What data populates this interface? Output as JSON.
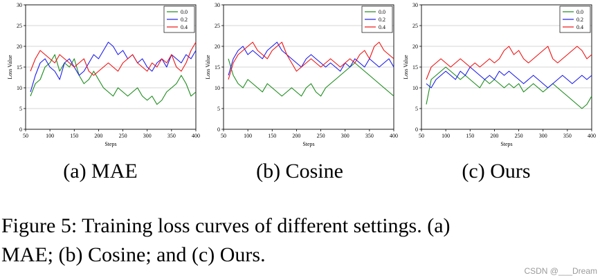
{
  "figure": {
    "labels": [
      "(a) MAE",
      "(b) Cosine",
      "(c) Ours"
    ],
    "caption_line1": "Figure 5: Training loss curves of different settings. (a)",
    "caption_line2": "MAE; (b) Cosine; and (c) Ours.",
    "watermark": "CSDN @___Dream"
  },
  "colors": {
    "s0": "#1a8a1a",
    "s1": "#1a1aee",
    "s2": "#ee1111"
  },
  "chart_data": [
    {
      "type": "line",
      "title": "(a) MAE",
      "xlabel": "Steps",
      "ylabel": "Loss Value",
      "xlim": [
        50,
        400
      ],
      "ylim": [
        0,
        30
      ],
      "xticks": [
        50,
        100,
        150,
        200,
        250,
        300,
        350,
        400
      ],
      "yticks": [
        0,
        5,
        10,
        15,
        20,
        25,
        30
      ],
      "grid": true,
      "legend": "top-right",
      "series": [
        {
          "name": "0.0",
          "x_start": 60,
          "x_step": 10,
          "values": [
            8,
            11,
            12,
            15,
            16,
            18,
            14,
            16,
            15,
            17,
            13,
            11,
            12,
            14,
            12,
            10,
            9,
            8,
            10,
            9,
            8,
            9,
            10,
            8,
            7,
            8,
            6,
            7,
            9,
            10,
            11,
            13,
            11,
            8,
            9
          ]
        },
        {
          "name": "0.2",
          "x_start": 60,
          "x_step": 10,
          "values": [
            9,
            13,
            16,
            17,
            15,
            14,
            12,
            16,
            17,
            15,
            13,
            14,
            16,
            18,
            17,
            19,
            21,
            20,
            18,
            19,
            17,
            18,
            16,
            17,
            15,
            14,
            16,
            17,
            15,
            18,
            17,
            16,
            18,
            17,
            19
          ]
        },
        {
          "name": "0.4",
          "x_start": 60,
          "x_step": 10,
          "values": [
            14,
            17,
            19,
            18,
            17,
            16,
            18,
            17,
            16,
            15,
            16,
            17,
            14,
            13,
            14,
            15,
            16,
            15,
            14,
            16,
            17,
            18,
            16,
            15,
            14,
            16,
            15,
            17,
            16,
            18,
            15,
            14,
            16,
            19,
            21
          ]
        }
      ]
    },
    {
      "type": "line",
      "title": "(b) Cosine",
      "xlabel": "Steps",
      "ylabel": "Loss Value",
      "xlim": [
        50,
        400
      ],
      "ylim": [
        0,
        30
      ],
      "xticks": [
        50,
        100,
        150,
        200,
        250,
        300,
        350,
        400
      ],
      "yticks": [
        0,
        5,
        10,
        15,
        20,
        25,
        30
      ],
      "grid": true,
      "legend": "top-right",
      "series": [
        {
          "name": "0.0",
          "x_start": 60,
          "x_step": 10,
          "values": [
            17,
            13,
            11,
            10,
            12,
            11,
            10,
            9,
            11,
            10,
            9,
            8,
            9,
            10,
            9,
            8,
            10,
            11,
            9,
            8,
            10,
            11,
            12,
            13,
            14,
            15,
            16,
            15,
            14,
            13,
            12,
            11,
            10,
            9,
            8
          ]
        },
        {
          "name": "0.2",
          "x_start": 60,
          "x_step": 10,
          "values": [
            13,
            17,
            19,
            20,
            18,
            19,
            18,
            17,
            19,
            20,
            21,
            19,
            18,
            17,
            16,
            15,
            17,
            18,
            17,
            16,
            15,
            16,
            15,
            14,
            16,
            15,
            17,
            16,
            15,
            17,
            16,
            15,
            16,
            17,
            15
          ]
        },
        {
          "name": "0.4",
          "x_start": 60,
          "x_step": 10,
          "values": [
            12,
            16,
            18,
            19,
            20,
            21,
            19,
            18,
            17,
            19,
            20,
            21,
            18,
            16,
            14,
            15,
            16,
            17,
            16,
            15,
            16,
            17,
            16,
            15,
            16,
            17,
            16,
            18,
            19,
            17,
            20,
            21,
            19,
            18,
            17
          ]
        }
      ]
    },
    {
      "type": "line",
      "title": "(c) Ours",
      "xlabel": "Steps",
      "ylabel": "Loss Value",
      "xlim": [
        50,
        400
      ],
      "ylim": [
        0,
        30
      ],
      "xticks": [
        50,
        100,
        150,
        200,
        250,
        300,
        350,
        400
      ],
      "yticks": [
        0,
        5,
        10,
        15,
        20,
        25,
        30
      ],
      "grid": true,
      "legend": "top-right",
      "series": [
        {
          "name": "0.0",
          "x_start": 60,
          "x_step": 10,
          "values": [
            6,
            12,
            13,
            14,
            15,
            14,
            13,
            12,
            13,
            12,
            11,
            10,
            12,
            11,
            12,
            11,
            10,
            11,
            10,
            11,
            9,
            10,
            11,
            10,
            9,
            10,
            11,
            10,
            9,
            8,
            7,
            6,
            5,
            6,
            8
          ]
        },
        {
          "name": "0.2",
          "x_start": 60,
          "x_step": 10,
          "values": [
            11,
            10,
            12,
            13,
            14,
            13,
            12,
            14,
            13,
            15,
            14,
            13,
            12,
            13,
            12,
            14,
            13,
            14,
            13,
            12,
            11,
            12,
            13,
            12,
            11,
            10,
            11,
            12,
            13,
            12,
            11,
            12,
            13,
            12,
            13
          ]
        },
        {
          "name": "0.4",
          "x_start": 60,
          "x_step": 10,
          "values": [
            12,
            15,
            16,
            17,
            16,
            15,
            16,
            17,
            16,
            15,
            16,
            15,
            16,
            17,
            16,
            17,
            19,
            20,
            18,
            19,
            17,
            16,
            17,
            18,
            19,
            20,
            17,
            16,
            17,
            18,
            19,
            20,
            19,
            17,
            18
          ]
        }
      ]
    }
  ]
}
